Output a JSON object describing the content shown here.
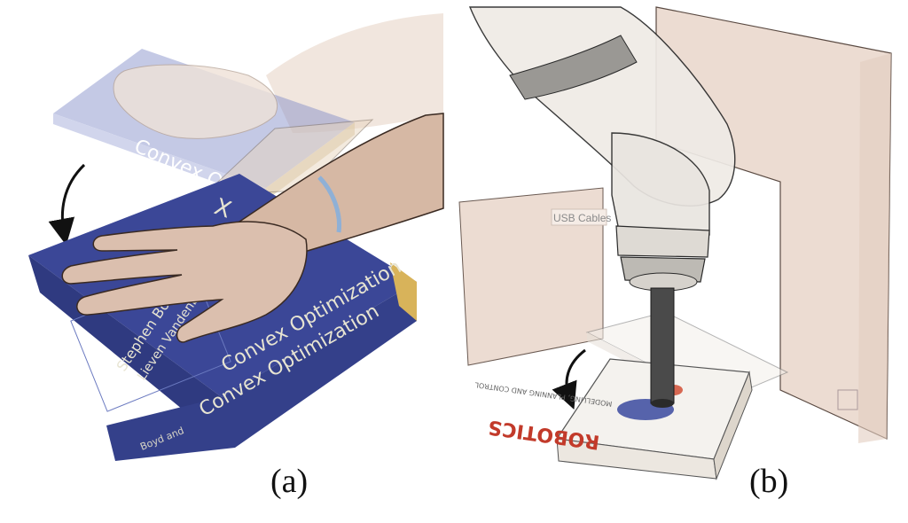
{
  "panels": [
    {
      "caption": "(a)",
      "book": {
        "title": "Convex Optimization",
        "authors_front_1": "Stephen Boyd",
        "authors_front_2": "Lieven Vandenberghe",
        "spine_author": "Boyd and",
        "spine_title": "Convex Optimization",
        "cover_mark": "X",
        "cover_color": "#3b4797"
      }
    },
    {
      "caption": "(b)",
      "box_label": "USB Cables",
      "book": {
        "title": "ROBOTICS",
        "subtitle": "MODELLING, PLANNING AND CONTROL"
      },
      "panel_color": "#ecdcd2"
    }
  ]
}
